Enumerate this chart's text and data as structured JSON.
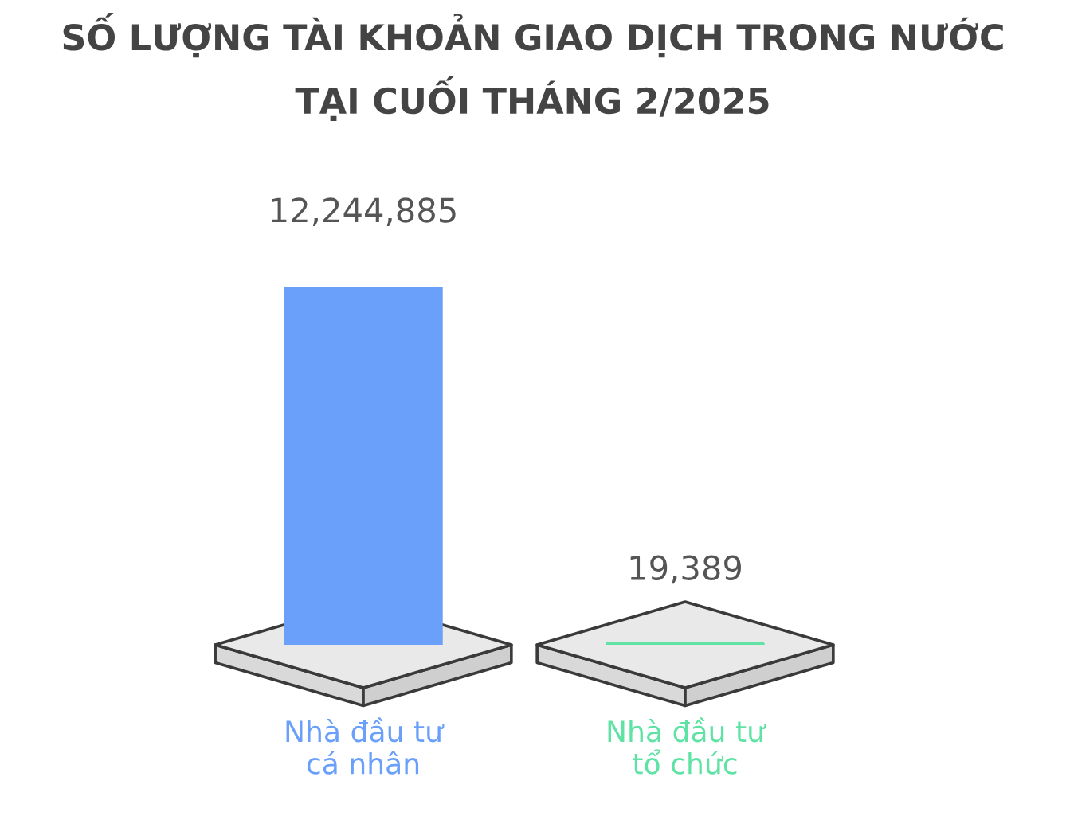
{
  "chart_data": {
    "type": "bar",
    "title": "SỐ LƯỢNG TÀI KHOẢN GIAO DỊCH TRONG NƯỚC\nTẠI CUỐI THÁNG 2/2025",
    "categories": [
      "Nhà đầu tư\ncá nhân",
      "Nhà đầu tư\ntổ chức"
    ],
    "values": [
      12244885,
      19389
    ],
    "colors": [
      "#6aa0fa",
      "#5fe3a4"
    ],
    "value_labels": [
      "12,244,885",
      "19,389"
    ],
    "tick_labels": "x"
  }
}
